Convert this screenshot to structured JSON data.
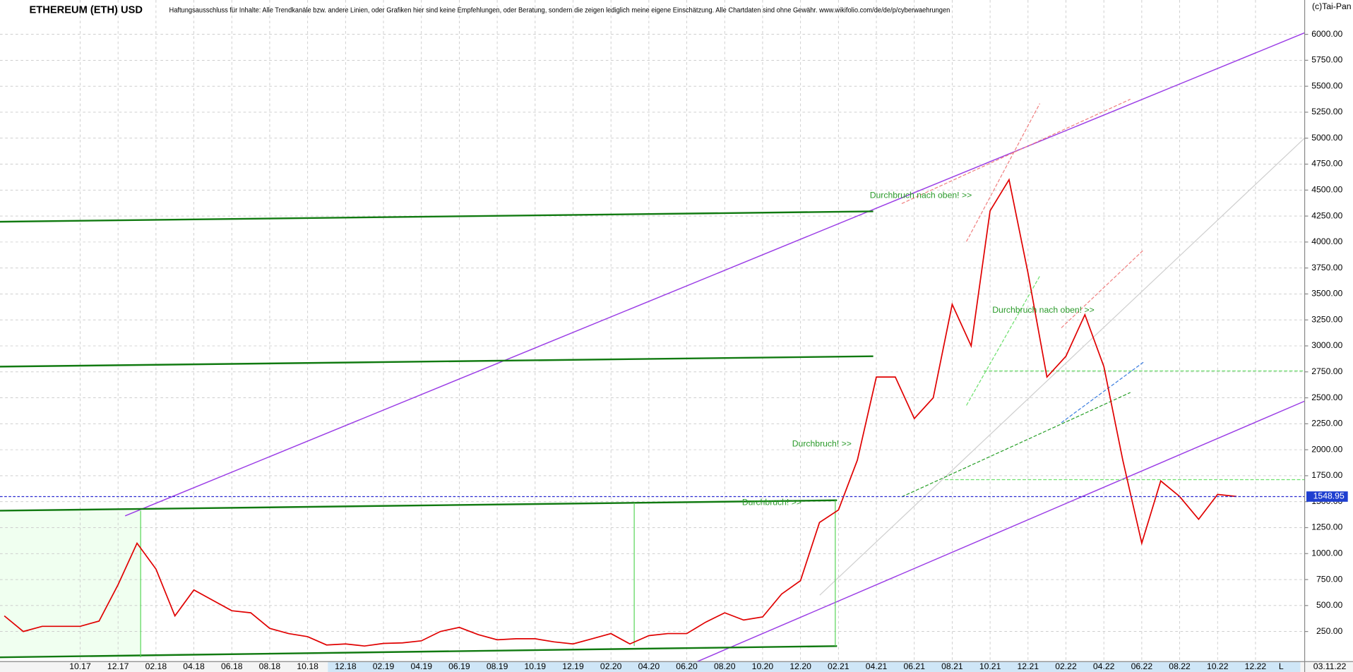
{
  "chart_data": {
    "type": "line",
    "title": "ETHEREUM (ETH) USD",
    "subtitle": "Haftungsausschluss für Inhalte: Alle Trendkanäle bzw. andere Linien, oder Grafiken hier sind keine Empfehlungen, oder Beratung, sondern die zeigen lediglich meine eigene Einschätzung. Alle Chartdaten sind ohne Gewähr.  www.wikifolio.com/de/de/p/cyberwaehrungen",
    "copyright": "(c)Tai-Pan",
    "date_label": "03.11.22",
    "scale_label": "L",
    "annotations": [
      "Durchbruch nach oben! >>",
      "Durchbruch nach oben! >>",
      "Durchbruch! >>",
      "Durchbruch! >>"
    ],
    "current_price": 1548.95,
    "categories": [
      null,
      null,
      null,
      null,
      "10.17",
      null,
      "12.17",
      null,
      "02.18",
      null,
      "04.18",
      null,
      "06.18",
      null,
      "08.18",
      null,
      "10.18",
      null,
      "12.18",
      null,
      "02.19",
      null,
      "04.19",
      null,
      "06.19",
      null,
      "08.19",
      null,
      "10.19",
      null,
      "12.19",
      null,
      "02.20",
      null,
      "04.20",
      null,
      "06.20",
      null,
      "08.20",
      null,
      "10.20",
      null,
      "12.20",
      null,
      "02.21",
      null,
      "04.21",
      null,
      "06.21",
      null,
      "08.21",
      null,
      "10.21",
      null,
      "12.21",
      null,
      "02.22",
      null,
      "04.22",
      null,
      "06.22",
      null,
      "08.22",
      null,
      "10.22",
      null,
      "12.22"
    ],
    "series": [
      {
        "name": "ETH",
        "color": "#e00000",
        "values": [
          400,
          250,
          300,
          300,
          300,
          350,
          700,
          1100,
          850,
          400,
          650,
          550,
          450,
          430,
          280,
          230,
          200,
          120,
          130,
          110,
          135,
          140,
          160,
          250,
          290,
          220,
          170,
          180,
          180,
          150,
          130,
          180,
          230,
          130,
          210,
          230,
          230,
          340,
          430,
          360,
          390,
          610,
          740,
          1300,
          1420,
          1900,
          2700,
          2700,
          2300,
          2500,
          3400,
          3000,
          4300,
          4600,
          3700,
          2700,
          2900,
          3300,
          2800,
          1900,
          1100,
          1700,
          1550,
          1330,
          1570,
          1550,
          null
        ]
      }
    ],
    "ylim": [
      -40,
      6330
    ],
    "yticks": [
      {
        "value": 250,
        "label": "250.00"
      },
      {
        "value": 500,
        "label": "500.00"
      },
      {
        "value": 750,
        "label": "750.00"
      },
      {
        "value": 1000,
        "label": "1000.00"
      },
      {
        "value": 1250,
        "label": "1250.00"
      },
      {
        "value": 1500,
        "label": "1500.00"
      },
      {
        "value": 1750,
        "label": "1750.00"
      },
      {
        "value": 2000,
        "label": "2000.00"
      },
      {
        "value": 2250,
        "label": "2250.00"
      },
      {
        "value": 2500,
        "label": "2500.00"
      },
      {
        "value": 2750,
        "label": "2750.00"
      },
      {
        "value": 3000,
        "label": "3000.00"
      },
      {
        "value": 3250,
        "label": "3250.00"
      },
      {
        "value": 3500,
        "label": "3500.00"
      },
      {
        "value": 3750,
        "label": "3750.00"
      },
      {
        "value": 4000,
        "label": "4000.00"
      },
      {
        "value": 4250,
        "label": "4250.00"
      },
      {
        "value": 4500,
        "label": "4500.00"
      },
      {
        "value": 4750,
        "label": "4750.00"
      },
      {
        "value": 5000,
        "label": "5000.00"
      },
      {
        "value": 5250,
        "label": "5250.00"
      },
      {
        "value": 5500,
        "label": "5500.00"
      },
      {
        "value": 5750,
        "label": "5750.00"
      },
      {
        "value": 6000,
        "label": "6000.00"
      }
    ],
    "grid": true
  }
}
